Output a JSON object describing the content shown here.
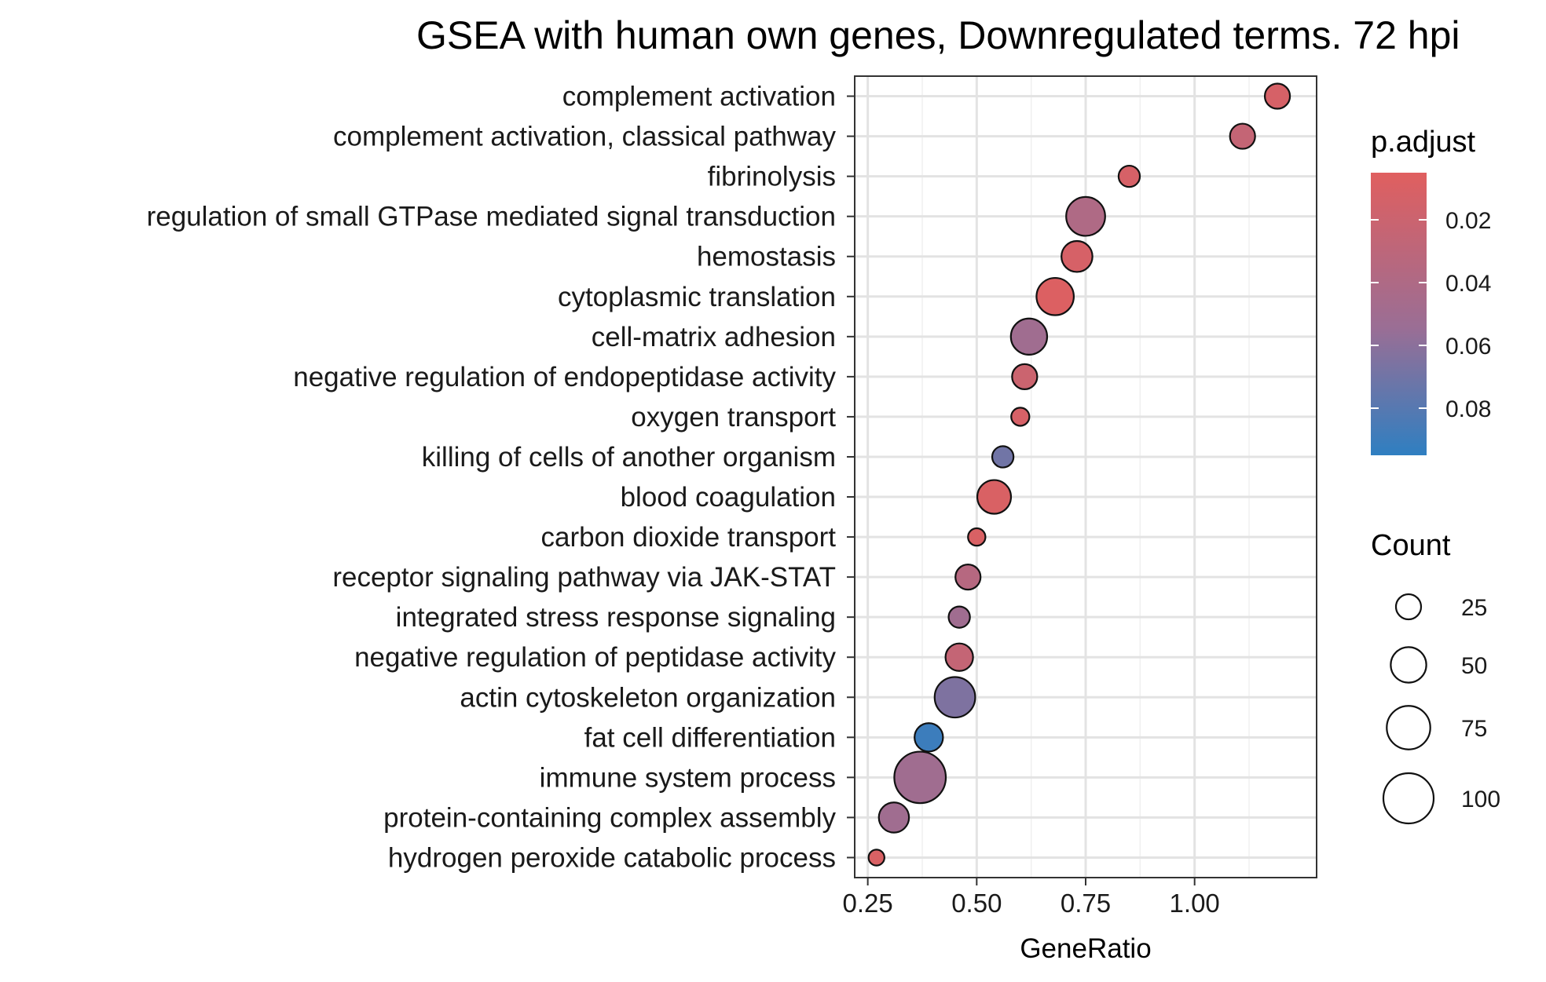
{
  "chart_data": {
    "type": "scatter",
    "title": "GSEA with human own genes, Downregulated terms. 72 hpi",
    "xlabel": "GeneRatio",
    "ylabel": "",
    "xlim": [
      0.22,
      1.28
    ],
    "x_ticks": [
      "0.25",
      "0.50",
      "0.75",
      "1.00"
    ],
    "x_tick_values": [
      0.25,
      0.5,
      0.75,
      1.0
    ],
    "grid": true,
    "legend_placement": "right",
    "categories": [
      "complement activation",
      "complement activation, classical pathway",
      "fibrinolysis",
      "regulation of small GTPase mediated signal transduction",
      "hemostasis",
      "cytoplasmic translation",
      "cell-matrix adhesion",
      "negative regulation of endopeptidase activity",
      "oxygen transport",
      "killing of cells of another organism",
      "blood coagulation",
      "carbon dioxide transport",
      "receptor signaling pathway via JAK-STAT",
      "integrated stress response signaling",
      "negative regulation of peptidase activity",
      "actin cytoskeleton organization",
      "fat cell differentiation",
      "immune system process",
      "protein-containing complex assembly",
      "hydrogen peroxide catabolic process"
    ],
    "points": [
      {
        "term": "complement activation",
        "x": 1.19,
        "count": 25,
        "p_adjust": 0.012
      },
      {
        "term": "complement activation, classical pathway",
        "x": 1.11,
        "count": 25,
        "p_adjust": 0.025
      },
      {
        "term": "fibrinolysis",
        "x": 0.85,
        "count": 18,
        "p_adjust": 0.012
      },
      {
        "term": "regulation of small GTPase mediated signal transduction",
        "x": 0.75,
        "count": 60,
        "p_adjust": 0.04
      },
      {
        "term": "hemostasis",
        "x": 0.73,
        "count": 38,
        "p_adjust": 0.012
      },
      {
        "term": "cytoplasmic translation",
        "x": 0.68,
        "count": 55,
        "p_adjust": 0.008
      },
      {
        "term": "cell-matrix adhesion",
        "x": 0.62,
        "count": 52,
        "p_adjust": 0.05
      },
      {
        "term": "negative regulation of endopeptidase activity",
        "x": 0.61,
        "count": 25,
        "p_adjust": 0.02
      },
      {
        "term": "oxygen transport",
        "x": 0.6,
        "count": 13,
        "p_adjust": 0.012
      },
      {
        "term": "killing of cells of another organism",
        "x": 0.56,
        "count": 18,
        "p_adjust": 0.07
      },
      {
        "term": "blood coagulation",
        "x": 0.54,
        "count": 45,
        "p_adjust": 0.01
      },
      {
        "term": "carbon dioxide transport",
        "x": 0.5,
        "count": 12,
        "p_adjust": 0.01
      },
      {
        "term": "receptor signaling pathway via JAK-STAT",
        "x": 0.48,
        "count": 25,
        "p_adjust": 0.035
      },
      {
        "term": "integrated stress response signaling",
        "x": 0.46,
        "count": 18,
        "p_adjust": 0.05
      },
      {
        "term": "negative regulation of peptidase activity",
        "x": 0.46,
        "count": 30,
        "p_adjust": 0.025
      },
      {
        "term": "actin cytoskeleton organization",
        "x": 0.45,
        "count": 65,
        "p_adjust": 0.065
      },
      {
        "term": "fat cell differentiation",
        "x": 0.39,
        "count": 32,
        "p_adjust": 0.09
      },
      {
        "term": "immune system process",
        "x": 0.37,
        "count": 105,
        "p_adjust": 0.05
      },
      {
        "term": "protein-containing complex assembly",
        "x": 0.31,
        "count": 36,
        "p_adjust": 0.05
      },
      {
        "term": "hydrogen peroxide catabolic process",
        "x": 0.27,
        "count": 10,
        "p_adjust": 0.01
      }
    ],
    "legend_color": {
      "title": "p.adjust",
      "range": [
        0.005,
        0.095
      ],
      "ticks": [
        "0.02",
        "0.04",
        "0.06",
        "0.08"
      ],
      "tick_values": [
        0.02,
        0.04,
        0.06,
        0.08
      ],
      "low_color": "#e05f5f",
      "high_color": "#2f7fc1"
    },
    "legend_size": {
      "title": "Count",
      "labels": [
        "25",
        "50",
        "75",
        "100"
      ],
      "values": [
        25,
        50,
        75,
        100
      ]
    }
  }
}
